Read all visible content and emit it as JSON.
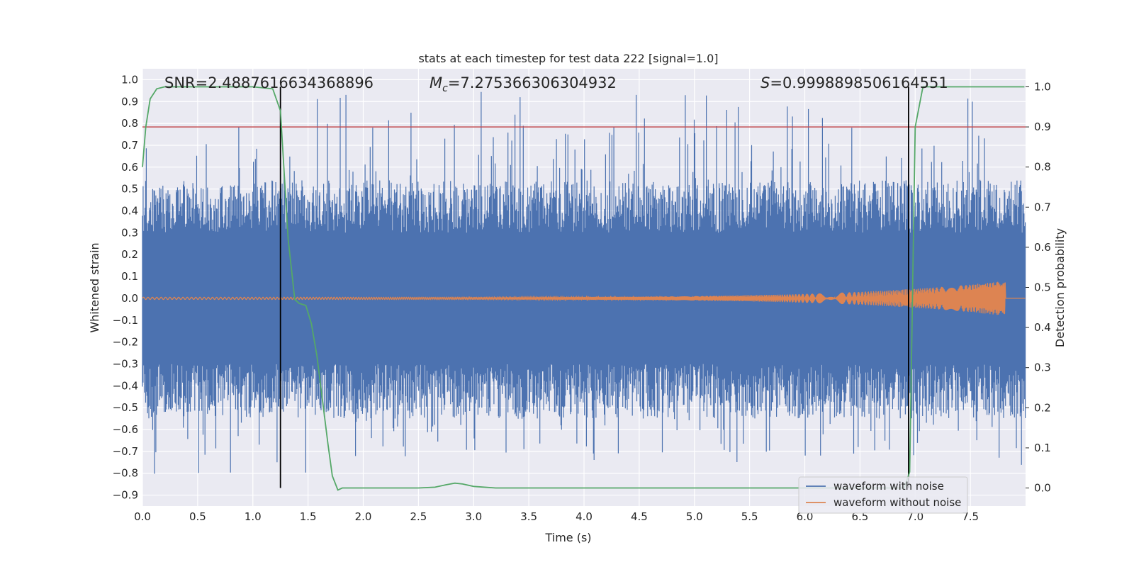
{
  "chart_data": {
    "type": "line",
    "title": "stats at each timestep for test data 222 [signal=1.0]",
    "xlabel": "Time (s)",
    "ylabel_left": "Whitened strain",
    "ylabel_right": "Detection probability",
    "xlim": [
      0.0,
      8.0
    ],
    "ylim_left": [
      -0.95,
      1.05
    ],
    "ylim_right": [
      -0.045,
      1.045
    ],
    "x_ticks": [
      "0.0",
      "0.5",
      "1.0",
      "1.5",
      "2.0",
      "2.5",
      "3.0",
      "3.5",
      "4.0",
      "4.5",
      "5.0",
      "5.5",
      "6.0",
      "6.5",
      "7.0",
      "7.5"
    ],
    "y_ticks_left": [
      "−0.9",
      "−0.8",
      "−0.7",
      "−0.6",
      "−0.5",
      "−0.4",
      "−0.3",
      "−0.2",
      "−0.1",
      "0.0",
      "0.1",
      "0.2",
      "0.3",
      "0.4",
      "0.5",
      "0.6",
      "0.7",
      "0.8",
      "0.9",
      "1.0"
    ],
    "y_ticks_right": [
      "0.0",
      "0.1",
      "0.2",
      "0.3",
      "0.4",
      "0.5",
      "0.6",
      "0.7",
      "0.8",
      "0.9",
      "1.0"
    ],
    "grid": true,
    "annotations": {
      "snr": "SNR=2.4887616634368896",
      "mc_symbol": "M",
      "mc_sub": "c",
      "mc_value": "=7.275366306304932",
      "s_symbol": "S",
      "s_value": "=0.9998898506164551"
    },
    "threshold_line": {
      "y_right": 0.9,
      "color": "#c44e52"
    },
    "vertical_lines": [
      1.25,
      6.94
    ],
    "series": [
      {
        "name": "waveform with noise",
        "color": "#4c72b0",
        "axis": "left",
        "envelope": {
          "typical_max": 0.5,
          "typical_min": -0.5,
          "peak_max": 1.0,
          "peak_min": -0.85
        }
      },
      {
        "name": "waveform without noise",
        "color": "#dd8452",
        "axis": "left",
        "chirp": {
          "start_amplitude": 0.005,
          "end_amplitude": 0.08,
          "end_time": 7.82
        }
      },
      {
        "name": "Detection probability",
        "color": "#55a868",
        "axis": "right",
        "x": [
          0.0,
          0.03,
          0.07,
          0.13,
          0.2,
          1.0,
          1.18,
          1.25,
          1.32,
          1.38,
          1.42,
          1.48,
          1.53,
          1.58,
          1.63,
          1.68,
          1.72,
          1.77,
          1.81,
          1.9,
          2.0,
          2.5,
          2.65,
          2.75,
          2.83,
          2.9,
          3.0,
          3.2,
          3.5,
          5.0,
          6.9,
          6.95,
          7.0,
          7.07,
          7.2,
          7.99
        ],
        "y": [
          0.8,
          0.9,
          0.97,
          0.995,
          1.0,
          1.0,
          0.995,
          0.94,
          0.62,
          0.47,
          0.46,
          0.455,
          0.41,
          0.33,
          0.22,
          0.11,
          0.03,
          -0.005,
          0.0,
          0.0,
          0.0,
          0.0,
          0.002,
          0.008,
          0.012,
          0.01,
          0.004,
          0.0,
          0.0,
          0.0,
          0.0,
          0.04,
          0.9,
          1.0,
          1.0,
          1.0
        ]
      }
    ],
    "legend": {
      "position": "lower-right",
      "entries": [
        "waveform with noise",
        "waveform without noise"
      ]
    }
  }
}
